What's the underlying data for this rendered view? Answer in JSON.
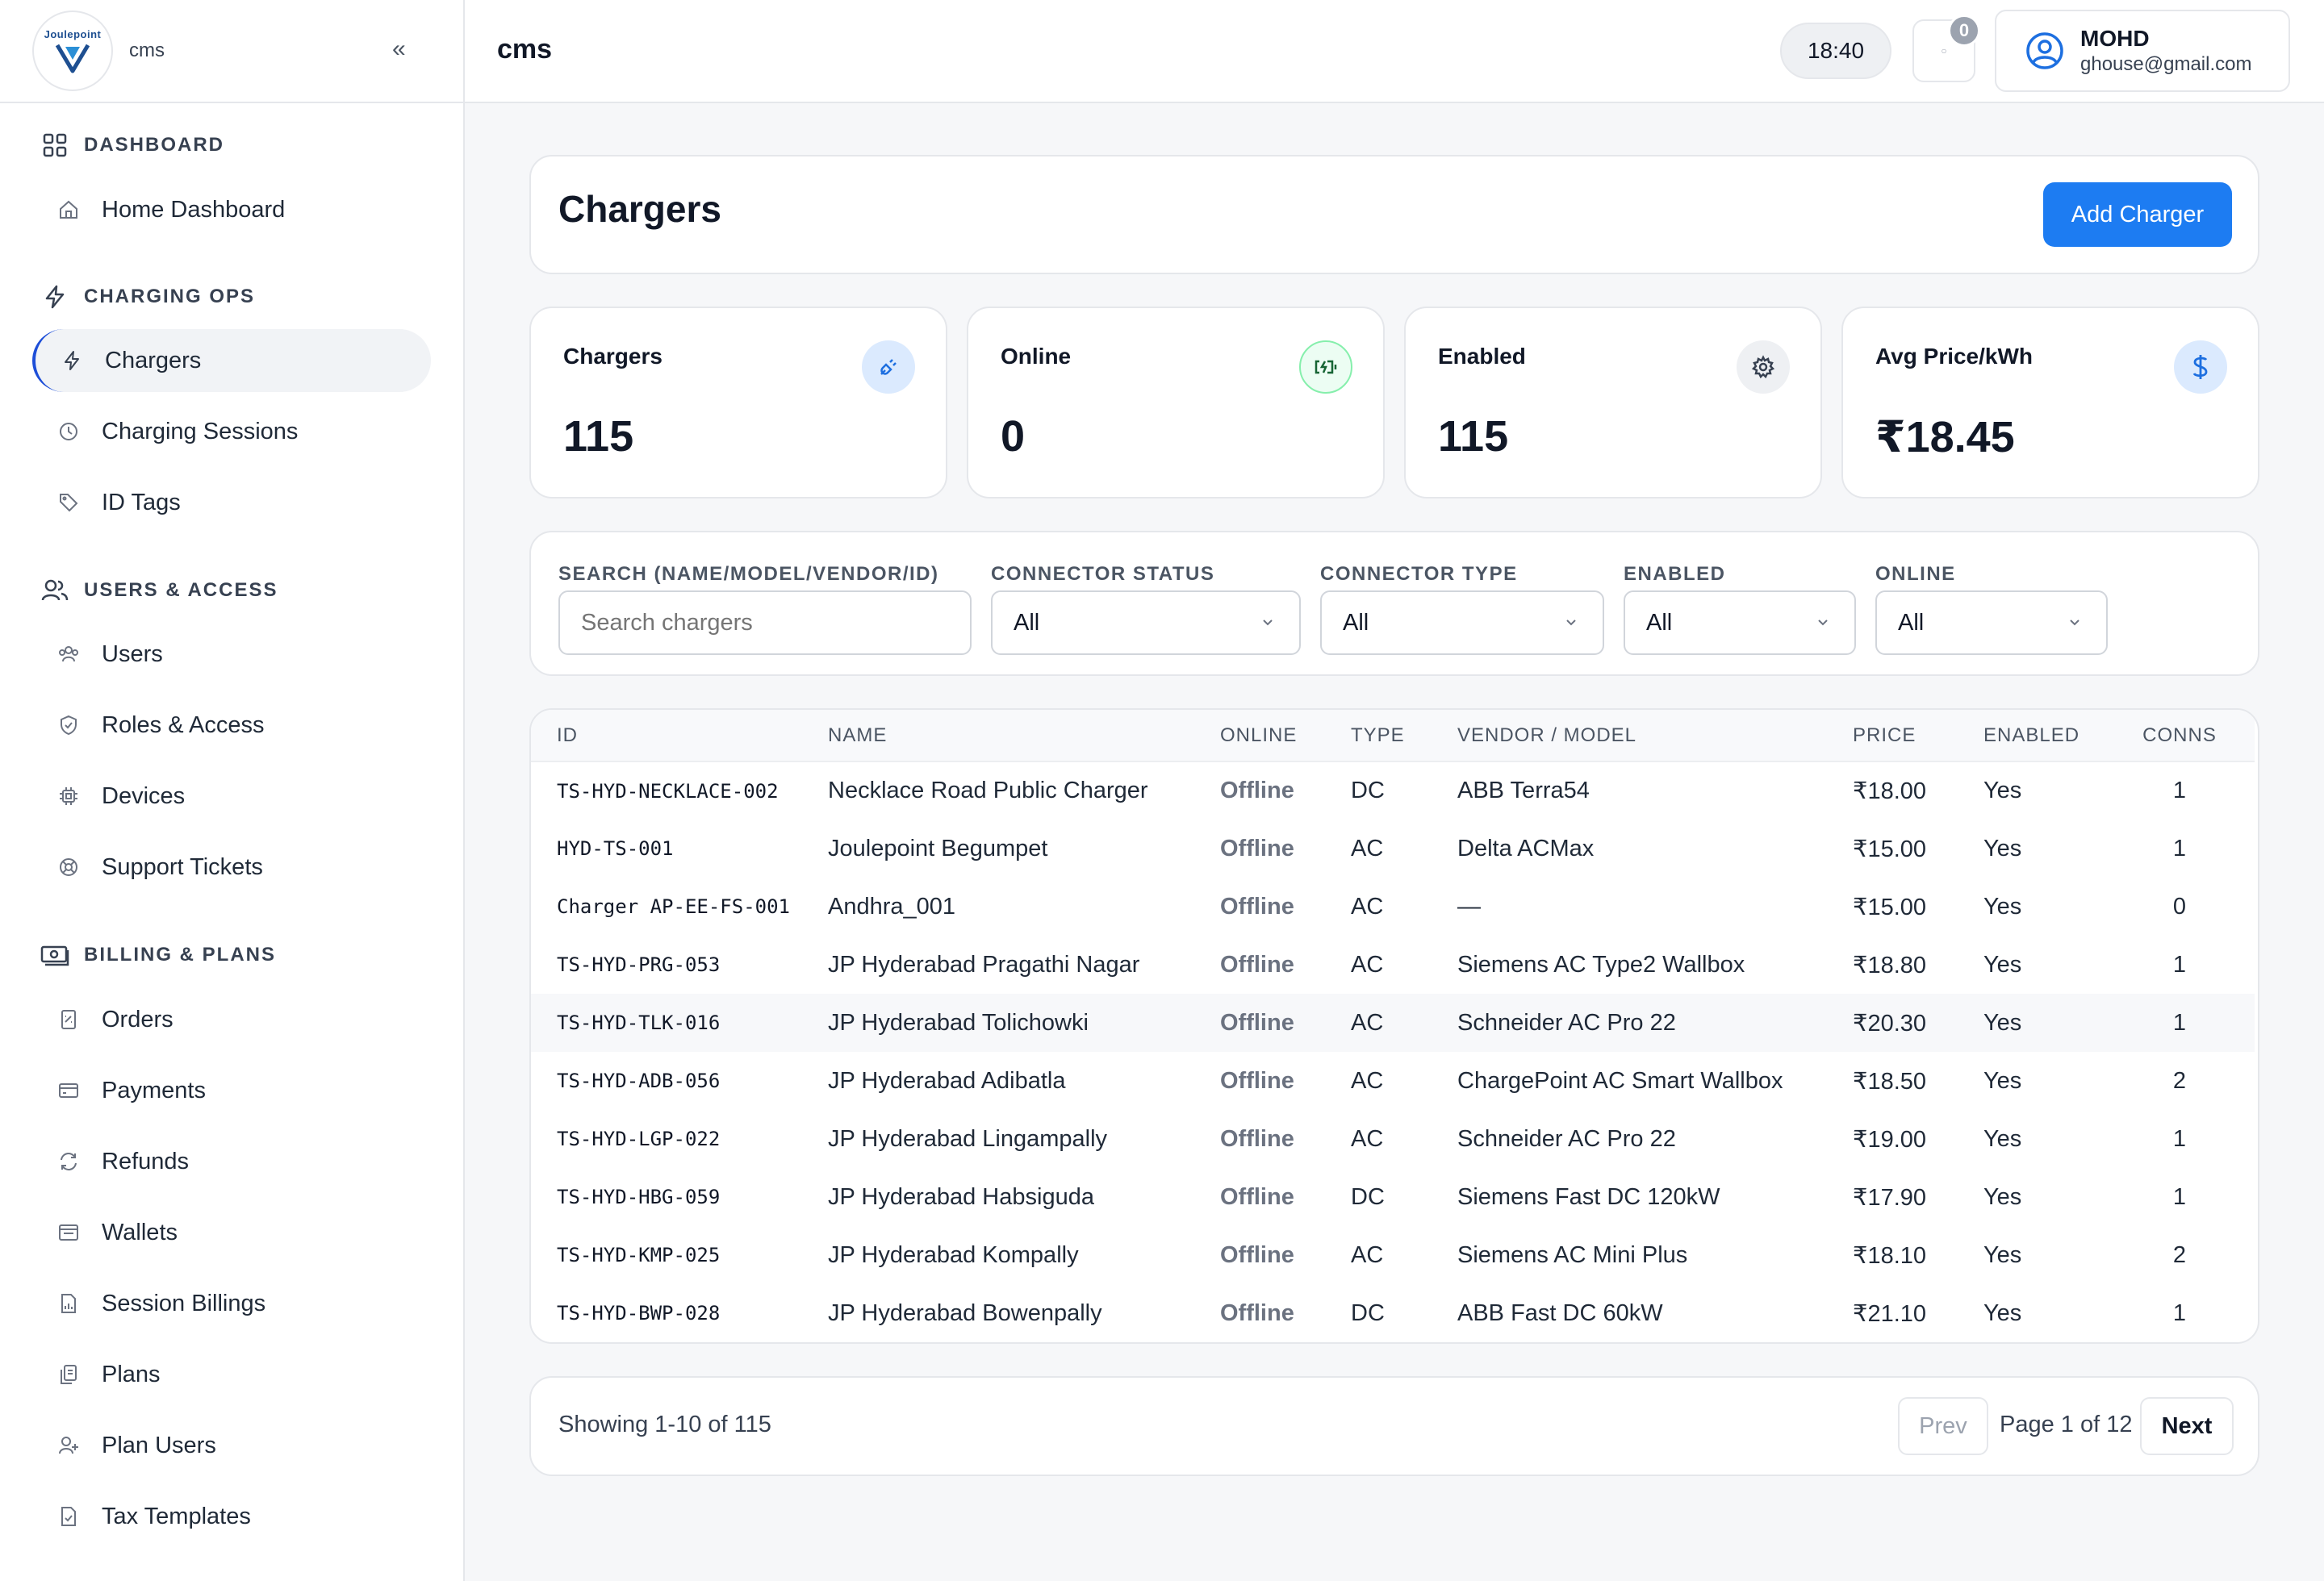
{
  "app": {
    "brand": "cms",
    "logo_text": "Joulepoint",
    "page_header": "cms",
    "clock": "18:40",
    "notifications_count": "0",
    "user_name": "MOHD",
    "user_email": "ghouse@gmail.com"
  },
  "sidebar": {
    "sections": [
      {
        "label": "DASHBOARD",
        "items": [
          {
            "label": "Home Dashboard"
          }
        ]
      },
      {
        "label": "CHARGING OPS",
        "items": [
          {
            "label": "Chargers"
          },
          {
            "label": "Charging Sessions"
          },
          {
            "label": "ID Tags"
          }
        ]
      },
      {
        "label": "USERS & ACCESS",
        "items": [
          {
            "label": "Users"
          },
          {
            "label": "Roles & Access"
          },
          {
            "label": "Devices"
          },
          {
            "label": "Support Tickets"
          }
        ]
      },
      {
        "label": "BILLING & PLANS",
        "items": [
          {
            "label": "Orders"
          },
          {
            "label": "Payments"
          },
          {
            "label": "Refunds"
          },
          {
            "label": "Wallets"
          },
          {
            "label": "Session Billings"
          },
          {
            "label": "Plans"
          },
          {
            "label": "Plan Users"
          },
          {
            "label": "Tax Templates"
          }
        ]
      }
    ]
  },
  "page": {
    "title": "Chargers",
    "add_button": "Add Charger"
  },
  "stats": [
    {
      "label": "Chargers",
      "value": "115",
      "icon": "plug-icon",
      "color": "#dbeafe"
    },
    {
      "label": "Online",
      "value": "0",
      "icon": "battery-charging-icon",
      "color": "#dcfce7"
    },
    {
      "label": "Enabled",
      "value": "115",
      "icon": "gear-icon",
      "color": "#eef0f3"
    },
    {
      "label": "Avg Price/kWh",
      "value": "₹18.45",
      "icon": "dollar-icon",
      "color": "#dbeafe"
    }
  ],
  "filters": {
    "search_label": "SEARCH (NAME/MODEL/VENDOR/ID)",
    "search_placeholder": "Search chargers",
    "connector_status_label": "CONNECTOR STATUS",
    "connector_status_value": "All",
    "connector_type_label": "CONNECTOR TYPE",
    "connector_type_value": "All",
    "enabled_label": "ENABLED",
    "enabled_value": "All",
    "online_label": "ONLINE",
    "online_value": "All"
  },
  "table": {
    "columns": [
      "ID",
      "NAME",
      "ONLINE",
      "TYPE",
      "VENDOR / MODEL",
      "PRICE",
      "ENABLED",
      "CONNS"
    ],
    "rows": [
      {
        "id": "TS-HYD-NECKLACE-002",
        "name": "Necklace Road Public Charger",
        "online": "Offline",
        "type": "DC",
        "vendor": "ABB Terra54",
        "price": "₹18.00",
        "enabled": "Yes",
        "conns": "1"
      },
      {
        "id": "HYD-TS-001",
        "name": "Joulepoint Begumpet",
        "online": "Offline",
        "type": "AC",
        "vendor": "Delta ACMax",
        "price": "₹15.00",
        "enabled": "Yes",
        "conns": "1"
      },
      {
        "id": "Charger AP-EE-FS-001",
        "name": "Andhra_001",
        "online": "Offline",
        "type": "AC",
        "vendor": "—",
        "price": "₹15.00",
        "enabled": "Yes",
        "conns": "0"
      },
      {
        "id": "TS-HYD-PRG-053",
        "name": "JP Hyderabad Pragathi Nagar",
        "online": "Offline",
        "type": "AC",
        "vendor": "Siemens AC Type2 Wallbox",
        "price": "₹18.80",
        "enabled": "Yes",
        "conns": "1"
      },
      {
        "id": "TS-HYD-TLK-016",
        "name": "JP Hyderabad Tolichowki",
        "online": "Offline",
        "type": "AC",
        "vendor": "Schneider AC Pro 22",
        "price": "₹20.30",
        "enabled": "Yes",
        "conns": "1"
      },
      {
        "id": "TS-HYD-ADB-056",
        "name": "JP Hyderabad Adibatla",
        "online": "Offline",
        "type": "AC",
        "vendor": "ChargePoint AC Smart Wallbox",
        "price": "₹18.50",
        "enabled": "Yes",
        "conns": "2"
      },
      {
        "id": "TS-HYD-LGP-022",
        "name": "JP Hyderabad Lingampally",
        "online": "Offline",
        "type": "AC",
        "vendor": "Schneider AC Pro 22",
        "price": "₹19.00",
        "enabled": "Yes",
        "conns": "1"
      },
      {
        "id": "TS-HYD-HBG-059",
        "name": "JP Hyderabad Habsiguda",
        "online": "Offline",
        "type": "DC",
        "vendor": "Siemens Fast DC 120kW",
        "price": "₹17.90",
        "enabled": "Yes",
        "conns": "1"
      },
      {
        "id": "TS-HYD-KMP-025",
        "name": "JP Hyderabad Kompally",
        "online": "Offline",
        "type": "AC",
        "vendor": "Siemens AC Mini Plus",
        "price": "₹18.10",
        "enabled": "Yes",
        "conns": "2"
      },
      {
        "id": "TS-HYD-BWP-028",
        "name": "JP Hyderabad Bowenpally",
        "online": "Offline",
        "type": "DC",
        "vendor": "ABB Fast DC 60kW",
        "price": "₹21.10",
        "enabled": "Yes",
        "conns": "1"
      }
    ]
  },
  "pagination": {
    "showing": "Showing 1-10 of 115",
    "prev": "Prev",
    "page_info": "Page 1 of 12",
    "next": "Next"
  }
}
